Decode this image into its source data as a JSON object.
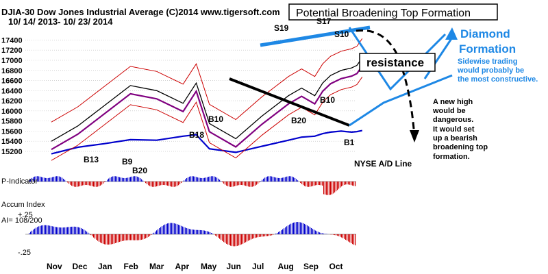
{
  "header": {
    "title": "DJIA-30  Dow Jones Industrial Average   (C)2014 www.tigersoft.com",
    "date_range": "10/ 14/ 2013- 10/ 23/ 2014"
  },
  "chart_data": [
    {
      "panel": "price",
      "type": "line",
      "title": "DJIA-30  Dow Jones Industrial Average",
      "subtitle": "10/ 14/ 2013- 10/ 23/ 2014",
      "ylim": [
        15050,
        17650
      ],
      "y_ticks": [
        "17400",
        "17200",
        "17000",
        "16800",
        "16600",
        "16400",
        "16200",
        "16000",
        "15800",
        "15600",
        "15400",
        "15200"
      ],
      "y_tick_values": [
        17400,
        17200,
        17000,
        16800,
        16600,
        16400,
        16200,
        16000,
        15800,
        15600,
        15400,
        15200
      ],
      "x_month_labels": [
        "Nov",
        "Dec",
        "Jan",
        "Feb",
        "Mar",
        "Apr",
        "May",
        "Jun",
        "Jul",
        "Aug",
        "Sep",
        "Oct"
      ],
      "grid": true,
      "series": [
        {
          "name": "DJIA close",
          "color": "#000000",
          "x": [
            0,
            1,
            2,
            3,
            4,
            5,
            5.5,
            6,
            7,
            8,
            9,
            9.5,
            10,
            10.3,
            10.6,
            11,
            11.4,
            11.6,
            11.8
          ],
          "values": [
            15400,
            15700,
            16100,
            16500,
            16400,
            16150,
            16550,
            15750,
            15450,
            15900,
            16300,
            16450,
            16300,
            16550,
            16700,
            16800,
            16850,
            16900,
            17050
          ]
        },
        {
          "name": "A/D Line",
          "color": "#0000cc",
          "x": [
            0,
            1,
            2,
            3,
            4,
            5,
            5.5,
            6,
            7,
            8,
            9,
            9.5,
            10,
            10.3,
            10.6,
            11,
            11.4,
            11.6,
            11.8
          ],
          "values": [
            15150,
            15280,
            15350,
            15430,
            15420,
            15500,
            15530,
            15250,
            15180,
            15300,
            15420,
            15480,
            15500,
            15550,
            15580,
            15600,
            15580,
            15590,
            15610
          ]
        }
      ],
      "annotations": {
        "signals": [
          "S19",
          "S17",
          "S10",
          "B10",
          "B20",
          "B10",
          "B18",
          "B13",
          "B9",
          "B20",
          "B1"
        ],
        "labels": [
          "Potential Broadening Top Formation",
          "resistance",
          "Diamond",
          "Formation",
          "Sidewise trading",
          "would probably be",
          "the most constructive.",
          "A new high",
          "would be",
          "dangerous.",
          "It would set",
          "up a bearish",
          "broadening top",
          "formation.",
          "NYSE A/D Line"
        ]
      }
    },
    {
      "panel": "p-indicator",
      "type": "bar",
      "title": "P-Indicator",
      "series": [
        {
          "name": "P-Indicator",
          "values": []
        }
      ]
    },
    {
      "panel": "accum-index",
      "type": "bar",
      "title": "Accum Index",
      "reading": "AI= 108/200",
      "y_ticks": [
        "+.25",
        "-.25"
      ],
      "ylim": [
        -0.25,
        0.25
      ],
      "series": [
        {
          "name": "Accum Index",
          "values": []
        }
      ]
    }
  ],
  "months": [
    "Nov",
    "Dec",
    "Jan",
    "Feb",
    "Mar",
    "Apr",
    "May",
    "Jun",
    "Jul",
    "Aug",
    "Sep",
    "Oct"
  ],
  "colors": {
    "price": "#000000",
    "ad_line": "#0000cc",
    "band": "#cc0000",
    "ma_short": "#800080",
    "ma_long": "#009900",
    "annot_blue": "#1e88e5",
    "pos_bar": "#0000cc",
    "neg_bar": "#cc0000"
  }
}
